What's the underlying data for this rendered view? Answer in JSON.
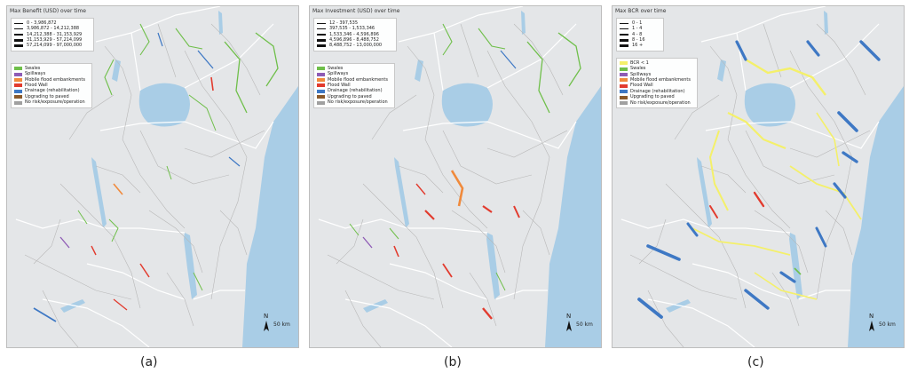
{
  "panels": [
    {
      "id": "a",
      "size_title": "Max Benefit (USD) over time",
      "size_items": [
        {
          "label": "0 - 3,986,872",
          "w": 1
        },
        {
          "label": "3,986,872 - 14,212,388",
          "w": 2
        },
        {
          "label": "14,212,388 - 31,153,929",
          "w": 3
        },
        {
          "label": "31,153,929 - 57,214,099",
          "w": 4
        },
        {
          "label": "57,214,099 - 97,000,000",
          "w": 5
        }
      ],
      "categories": [
        {
          "label": "Swales",
          "color": "#6fbf4a"
        },
        {
          "label": "Spillways",
          "color": "#8e5bb5"
        },
        {
          "label": "Mobile flood embankments",
          "color": "#f08a3c"
        },
        {
          "label": "Flood Wall",
          "color": "#e23b2e"
        },
        {
          "label": "Drainage (rehabilitation)",
          "color": "#3e78c4"
        },
        {
          "label": "Upgrading to paved",
          "color": "#8b5a2b"
        },
        {
          "label": "No risk/exposure/operation",
          "color": "#a0a0a0"
        }
      ],
      "north": "N",
      "scale": "50 km",
      "caption": "(a)"
    },
    {
      "id": "b",
      "size_title": "Max Investment (USD) over time",
      "size_items": [
        {
          "label": "12 - 397,535",
          "w": 1
        },
        {
          "label": "397,535 - 1,533,346",
          "w": 2
        },
        {
          "label": "1,533,346 - 4,596,896",
          "w": 3
        },
        {
          "label": "4,596,896 - 8,488,752",
          "w": 4
        },
        {
          "label": "8,488,752 - 13,000,000",
          "w": 5
        }
      ],
      "categories": [
        {
          "label": "Swales",
          "color": "#6fbf4a"
        },
        {
          "label": "Spillways",
          "color": "#8e5bb5"
        },
        {
          "label": "Mobile flood embankments",
          "color": "#f08a3c"
        },
        {
          "label": "Flood Wall",
          "color": "#e23b2e"
        },
        {
          "label": "Drainage (rehabilitation)",
          "color": "#3e78c4"
        },
        {
          "label": "Upgrading to paved",
          "color": "#8b5a2b"
        },
        {
          "label": "No risk/exposure/operation",
          "color": "#a0a0a0"
        }
      ],
      "north": "N",
      "scale": "50 km",
      "caption": "(b)"
    },
    {
      "id": "c",
      "size_title": "Max BCR over time",
      "size_items": [
        {
          "label": "0 - 1",
          "w": 1
        },
        {
          "label": "1 - 4",
          "w": 2
        },
        {
          "label": "4 - 8",
          "w": 3
        },
        {
          "label": "8 - 16",
          "w": 4
        },
        {
          "label": "16 +",
          "w": 5
        }
      ],
      "categories": [
        {
          "label": "BCR < 1",
          "color": "#f4f06a"
        },
        {
          "label": "Swales",
          "color": "#6fbf4a"
        },
        {
          "label": "Spillways",
          "color": "#8e5bb5"
        },
        {
          "label": "Mobile flood embankments",
          "color": "#f08a3c"
        },
        {
          "label": "Flood Wall",
          "color": "#e23b2e"
        },
        {
          "label": "Drainage (rehabilitation)",
          "color": "#3e78c4"
        },
        {
          "label": "Upgrading to paved",
          "color": "#8b5a2b"
        },
        {
          "label": "No risk/exposure/operation",
          "color": "#a0a0a0"
        }
      ],
      "north": "N",
      "scale": "50 km",
      "caption": "(c)"
    }
  ],
  "map_colors": {
    "land": "#e4e6e8",
    "water": "#a9cde6",
    "road": "#b8b8b8",
    "border": "#ffffff"
  }
}
